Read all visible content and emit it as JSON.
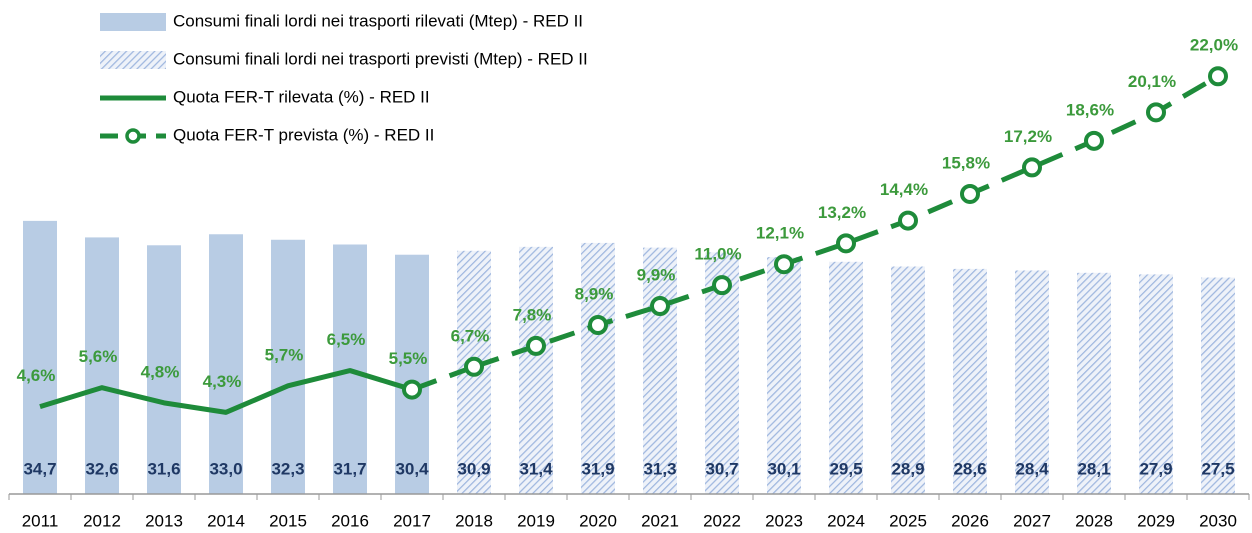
{
  "chart_data": {
    "type": "bar-line",
    "categories": [
      "2011",
      "2012",
      "2013",
      "2014",
      "2015",
      "2016",
      "2017",
      "2018",
      "2019",
      "2020",
      "2021",
      "2022",
      "2023",
      "2024",
      "2025",
      "2026",
      "2027",
      "2028",
      "2029",
      "2030"
    ],
    "ylim": [
      0,
      62
    ],
    "y2lim": [
      0,
      25.7
    ],
    "series": [
      {
        "name": "Consumi finali lordi nei trasporti rilevati (Mtep) - RED II",
        "type": "bar",
        "color": "#b8cce4",
        "fill_style": "solid",
        "values": [
          34.7,
          32.6,
          31.6,
          33.0,
          32.3,
          31.7,
          30.4,
          null,
          null,
          null,
          null,
          null,
          null,
          null,
          null,
          null,
          null,
          null,
          null,
          null
        ],
        "value_labels": [
          "34,7",
          "32,6",
          "31,6",
          "33,0",
          "32,3",
          "31,7",
          "30,4",
          null,
          null,
          null,
          null,
          null,
          null,
          null,
          null,
          null,
          null,
          null,
          null,
          null
        ]
      },
      {
        "name": "Consumi finali lordi nei trasporti previsti (Mtep) - RED II",
        "type": "bar",
        "color": "#9fb7df",
        "fill_style": "hatched",
        "values": [
          null,
          null,
          null,
          null,
          null,
          null,
          null,
          30.9,
          31.4,
          31.9,
          31.3,
          30.7,
          30.1,
          29.5,
          28.9,
          28.6,
          28.4,
          28.1,
          27.9,
          27.5
        ],
        "value_labels": [
          null,
          null,
          null,
          null,
          null,
          null,
          null,
          "30,9",
          "31,4",
          "31,9",
          "31,3",
          "30,7",
          "30,1",
          "29,5",
          "28,9",
          "28,6",
          "28,4",
          "28,1",
          "27,9",
          "27,5"
        ]
      },
      {
        "name": "Quota FER-T rilevata (%) - RED II",
        "type": "line",
        "axis": "y2",
        "color": "#1e8b3a",
        "dashed": false,
        "markers": false,
        "values": [
          4.6,
          5.6,
          4.8,
          4.3,
          5.7,
          6.5,
          5.5,
          null,
          null,
          null,
          null,
          null,
          null,
          null,
          null,
          null,
          null,
          null,
          null,
          null
        ],
        "value_labels": [
          "4,6%",
          "5,6%",
          "4,8%",
          "4,3%",
          "5,7%",
          "6,5%",
          "5,5%",
          null,
          null,
          null,
          null,
          null,
          null,
          null,
          null,
          null,
          null,
          null,
          null,
          null
        ]
      },
      {
        "name": "Quota FER-T prevista (%) - RED II",
        "type": "line",
        "axis": "y2",
        "color": "#1e8b3a",
        "dashed": true,
        "markers": true,
        "values": [
          null,
          null,
          null,
          null,
          null,
          null,
          null,
          6.7,
          7.8,
          8.9,
          9.9,
          11.0,
          12.1,
          13.2,
          14.4,
          15.8,
          17.2,
          18.6,
          20.1,
          22.0
        ],
        "value_labels": [
          null,
          null,
          null,
          null,
          null,
          null,
          null,
          "6,7%",
          "7,8%",
          "8,9%",
          "9,9%",
          "11,0%",
          "12,1%",
          "13,2%",
          "14,4%",
          "15,8%",
          "17,2%",
          "18,6%",
          "20,1%",
          "22,0%"
        ]
      }
    ]
  }
}
